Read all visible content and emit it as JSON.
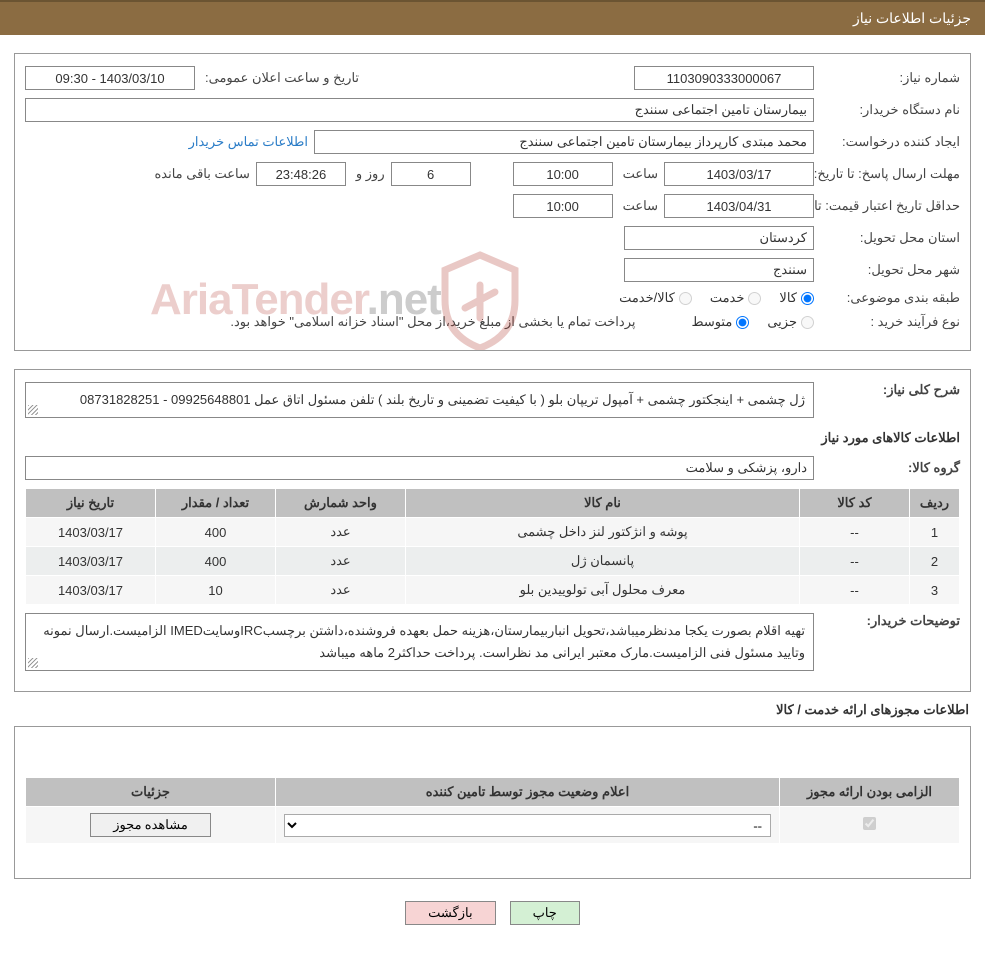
{
  "header": {
    "title": "جزئیات اطلاعات نیاز"
  },
  "info": {
    "need_no_label": "شماره نیاز:",
    "need_no": "1103090333000067",
    "announce_label": "تاریخ و ساعت اعلان عمومی:",
    "announce_value": "1403/03/10 - 09:30",
    "buyer_org_label": "نام دستگاه خریدار:",
    "buyer_org": "بیمارستان تامین اجتماعی سنندج",
    "requester_label": "ایجاد کننده درخواست:",
    "requester": "محمد مبتدی کارپرداز بیمارستان تامین اجتماعی سنندج",
    "contact_link": "اطلاعات تماس خریدار",
    "deadline_label": "مهلت ارسال پاسخ:",
    "until_date_label": "تا تاریخ:",
    "deadline_date": "1403/03/17",
    "time_label": "ساعت",
    "deadline_time": "10:00",
    "days_label": "روز و",
    "days_remain": "6",
    "countdown": "23:48:26",
    "remain_label": "ساعت باقی مانده",
    "validity_label": "حداقل تاریخ اعتبار قیمت:",
    "validity_date": "1403/04/31",
    "validity_time": "10:00",
    "province_label": "استان محل تحویل:",
    "province": "کردستان",
    "city_label": "شهر محل تحویل:",
    "city": "سنندج",
    "category_label": "طبقه بندی موضوعی:",
    "cat_goods": "کالا",
    "cat_service": "خدمت",
    "cat_goods_service": "کالا/خدمت",
    "process_label": "نوع فرآیند خرید :",
    "proc_partial": "جزیی",
    "proc_medium": "متوسط",
    "payment_note": "پرداخت تمام یا بخشی از مبلغ خرید،از محل \"اسناد خزانه اسلامی\" خواهد بود."
  },
  "desc": {
    "overall_label": "شرح کلی نیاز:",
    "overall_text": "ژل چشمی + اینجکتور چشمی + آمپول تریپان بلو ( با کیفیت تضمینی و تاریخ بلند ) تلفن مسئول اتاق عمل 09925648801 - 08731828251",
    "goods_info_title": "اطلاعات کالاهای مورد نیاز",
    "group_label": "گروه کالا:",
    "group_value": "دارو، پزشکی و سلامت",
    "buyer_note_label": "توضیحات خریدار:",
    "buyer_note_text": "تهیه اقلام بصورت یکجا مدنظرمیباشد،تحویل انباربیمارستان،هزینه حمل بعهده فروشنده،داشتن برچسبIRCوسایتIMED الزامیست.ارسال نمونه وتایید مسئول فنی الزامیست.مارک معتبر ایرانی مد نظراست. پرداخت حداکثر2 ماهه میباشد"
  },
  "table": {
    "headers": {
      "row": "ردیف",
      "code": "کد کالا",
      "name": "نام کالا",
      "unit": "واحد شمارش",
      "qty": "تعداد / مقدار",
      "date": "تاریخ نیاز"
    },
    "rows": [
      {
        "row": "1",
        "code": "--",
        "name": "پوشه و انژکتور لنز داخل چشمی",
        "unit": "عدد",
        "qty": "400",
        "date": "1403/03/17"
      },
      {
        "row": "2",
        "code": "--",
        "name": "پانسمان ژل",
        "unit": "عدد",
        "qty": "400",
        "date": "1403/03/17"
      },
      {
        "row": "3",
        "code": "--",
        "name": "معرف محلول آبی تولوییدین بلو",
        "unit": "عدد",
        "qty": "10",
        "date": "1403/03/17"
      }
    ]
  },
  "license": {
    "section_title": "اطلاعات مجوزهای ارائه خدمت / کالا",
    "headers": {
      "mandatory": "الزامی بودن ارائه مجوز",
      "status": "اعلام وضعیت مجوز توسط تامین کننده",
      "details": "جزئیات"
    },
    "status_placeholder": "--",
    "view_btn": "مشاهده مجوز"
  },
  "footer": {
    "print": "چاپ",
    "back": "بازگشت"
  },
  "watermark": {
    "text_main": "AriaTender",
    "text_suffix": ".net"
  },
  "colors": {
    "header_bg": "#8b6c42",
    "th_bg": "#c0c0c0",
    "td_bg_odd": "#f6f6f6",
    "td_bg_even": "#eceeee",
    "link": "#2a7cc7",
    "btn_print": "#d4f0d4",
    "btn_back": "#f7d4d4"
  }
}
